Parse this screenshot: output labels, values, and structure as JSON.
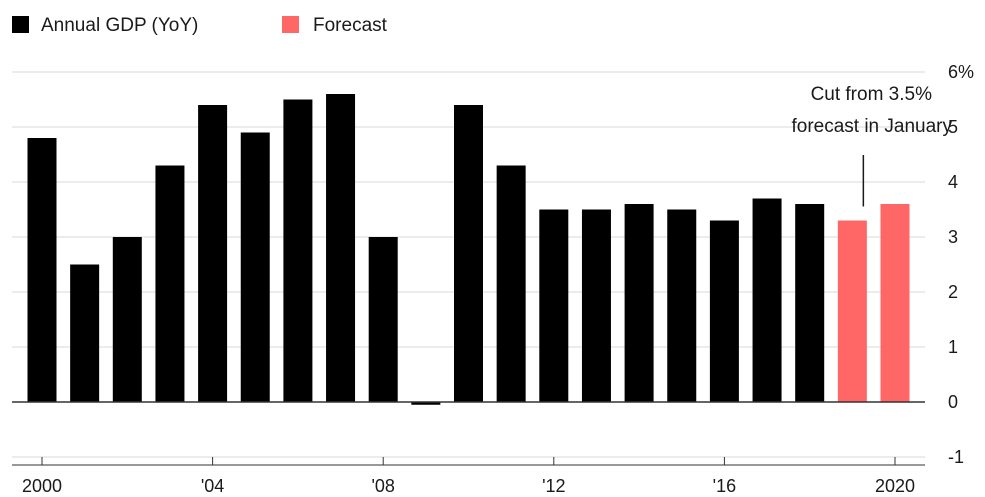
{
  "legend": {
    "actual_label": "Annual GDP (YoY)",
    "forecast_label": "Forecast"
  },
  "annotation": {
    "line1": "Cut from 3.5%",
    "line2": "forecast in January"
  },
  "colors": {
    "actual": "#000000",
    "forecast": "#ff6666",
    "grid": "#d9d9d9"
  },
  "chart_data": {
    "type": "bar",
    "categories": [
      "2000",
      "2001",
      "2002",
      "2003",
      "2004",
      "2005",
      "2006",
      "2007",
      "2008",
      "2009",
      "2010",
      "2011",
      "2012",
      "2013",
      "2014",
      "2015",
      "2016",
      "2017",
      "2018",
      "2019",
      "2020"
    ],
    "series": [
      {
        "name": "Annual GDP (YoY)",
        "values": [
          4.8,
          2.5,
          3.0,
          4.3,
          5.4,
          4.9,
          5.5,
          5.6,
          3.0,
          -0.05,
          5.4,
          4.3,
          3.5,
          3.5,
          3.6,
          3.5,
          3.3,
          3.7,
          3.6,
          null,
          null
        ]
      },
      {
        "name": "Forecast",
        "values": [
          null,
          null,
          null,
          null,
          null,
          null,
          null,
          null,
          null,
          null,
          null,
          null,
          null,
          null,
          null,
          null,
          null,
          null,
          null,
          3.3,
          3.6
        ]
      }
    ],
    "x_tick_labels": [
      {
        "year": "2000",
        "label": "2000"
      },
      {
        "year": "2004",
        "label": "'04"
      },
      {
        "year": "2008",
        "label": "'08"
      },
      {
        "year": "2012",
        "label": "'12"
      },
      {
        "year": "2016",
        "label": "'16"
      },
      {
        "year": "2020",
        "label": "2020"
      }
    ],
    "y_ticks": [
      {
        "value": 6,
        "label": "6%"
      },
      {
        "value": 5,
        "label": "5"
      },
      {
        "value": 4,
        "label": "4"
      },
      {
        "value": 3,
        "label": "3"
      },
      {
        "value": 2,
        "label": "2"
      },
      {
        "value": 1,
        "label": "1"
      },
      {
        "value": 0,
        "label": "0"
      },
      {
        "value": -1,
        "label": "-1"
      }
    ],
    "ylim": [
      -1,
      6
    ],
    "grid": true,
    "legend_position": "top-left",
    "y_axis_position": "right",
    "annotation_target": "2019"
  }
}
